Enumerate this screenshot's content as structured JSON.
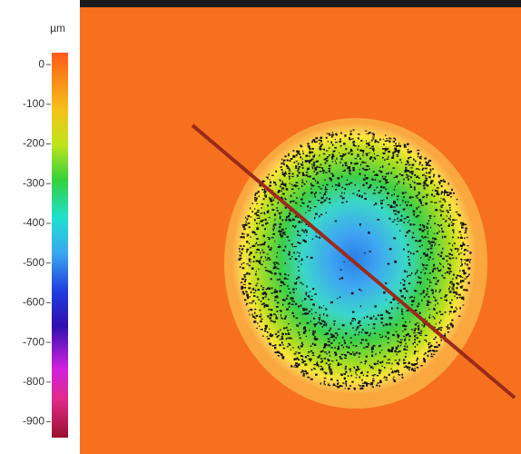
{
  "chart_data": {
    "type": "heatmap",
    "colorbar": {
      "title": "µm",
      "lim": [
        30,
        -940
      ],
      "ticks": [
        0,
        -100,
        -200,
        -300,
        -400,
        -500,
        -600,
        -700,
        -800,
        -900
      ]
    }
  }
}
